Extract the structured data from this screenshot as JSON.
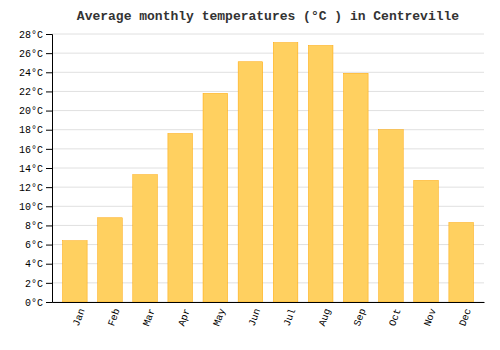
{
  "chart_data": {
    "type": "bar",
    "title": "Average monthly temperatures (°C ) in Centreville",
    "categories": [
      "Jan",
      "Feb",
      "Mar",
      "Apr",
      "May",
      "Jun",
      "Jul",
      "Aug",
      "Sep",
      "Oct",
      "Nov",
      "Dec"
    ],
    "values": [
      6.4,
      8.8,
      13.3,
      17.6,
      21.8,
      25.1,
      27.1,
      26.8,
      23.9,
      18.0,
      12.7,
      8.3
    ],
    "color": "#FFD060",
    "ylim": [
      0,
      28
    ],
    "yticks": [
      {
        "value": 0,
        "label": "0°C"
      },
      {
        "value": 2,
        "label": "2°C"
      },
      {
        "value": 4,
        "label": "4°C"
      },
      {
        "value": 6,
        "label": "6°C"
      },
      {
        "value": 8,
        "label": "8°C"
      },
      {
        "value": 10,
        "label": "10°C"
      },
      {
        "value": 12,
        "label": "12°C"
      },
      {
        "value": 14,
        "label": "14°C"
      },
      {
        "value": 16,
        "label": "16°C"
      },
      {
        "value": 18,
        "label": "18°C"
      },
      {
        "value": 20,
        "label": "20°C"
      },
      {
        "value": 22,
        "label": "22°C"
      },
      {
        "value": 24,
        "label": "24°C"
      },
      {
        "value": 26,
        "label": "26°C"
      },
      {
        "value": 28,
        "label": "28°C"
      }
    ],
    "grid": true
  }
}
